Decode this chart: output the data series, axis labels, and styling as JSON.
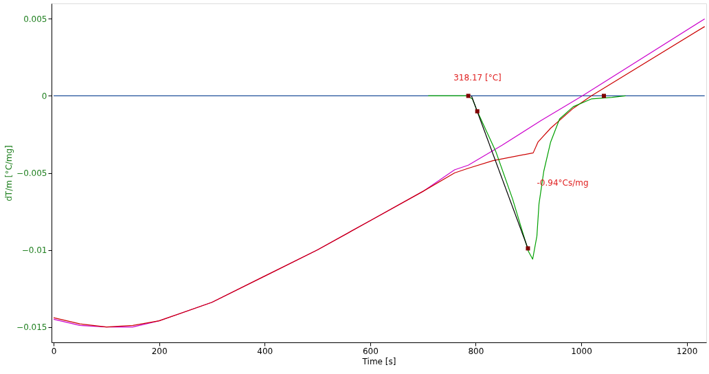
{
  "chart_data": {
    "type": "line",
    "xlabel": "Time [s]",
    "ylabel": "dT/m  [°C/mg]",
    "xlim": [
      -4,
      1237
    ],
    "xticks": [
      0,
      200,
      400,
      600,
      800,
      1000,
      1200
    ],
    "ylim": [
      -0.016,
      0.006
    ],
    "yticks": [
      0.005,
      0,
      -0.005,
      -0.01,
      -0.015
    ],
    "grid": false,
    "series": [
      {
        "color": "#1f4f9a",
        "x": [
          0,
          1234
        ],
        "values": [
          0,
          0
        ]
      },
      {
        "color": "#cc00cc",
        "x": [
          0,
          50,
          100,
          150,
          200,
          300,
          400,
          500,
          600,
          700,
          760,
          786,
          850,
          924,
          1002,
          1234
        ],
        "values": [
          -0.0145,
          -0.0149,
          -0.015,
          -0.015,
          -0.0146,
          -0.0134,
          -0.0117,
          -0.01,
          -0.0081,
          -0.0062,
          -0.0048,
          -0.0045,
          -0.0032,
          -0.0016,
          0,
          0.005
        ]
      },
      {
        "color": "#cc0000",
        "x": [
          0,
          50,
          100,
          150,
          200,
          300,
          400,
          500,
          600,
          700,
          760,
          786,
          833,
          909,
          918,
          942,
          985,
          1019,
          1234
        ],
        "values": [
          -0.0144,
          -0.0148,
          -0.015,
          -0.0149,
          -0.0146,
          -0.0134,
          -0.0117,
          -0.01,
          -0.0081,
          -0.0062,
          -0.005,
          -0.0047,
          -0.0042,
          -0.0037,
          -0.003,
          -0.0021,
          -0.0008,
          0,
          0.0045
        ]
      },
      {
        "color": "#00a000",
        "x": [
          710,
          784,
          794,
          803,
          838,
          870,
          900,
          908,
          916,
          920,
          929,
          942,
          959,
          985,
          1019,
          1058,
          1084
        ],
        "values": [
          0,
          0,
          -0.0002,
          -0.001,
          -0.0036,
          -0.0067,
          -0.0101,
          -0.0106,
          -0.0091,
          -0.007,
          -0.0049,
          -0.003,
          -0.0015,
          -0.0007,
          -0.0002,
          -0.0001,
          0
        ]
      },
      {
        "color": "#000000",
        "x": [
          792,
          900
        ],
        "values": [
          0,
          -0.01
        ]
      },
      {
        "type": "scatter",
        "marker": "square",
        "color": "#800000",
        "x": [
          786,
          803,
          899,
          1043
        ],
        "values": [
          0,
          -0.001,
          -0.0099,
          0
        ]
      }
    ],
    "annotations": [
      "318.17 [°C]",
      "-0.94°Cs/mg"
    ]
  }
}
